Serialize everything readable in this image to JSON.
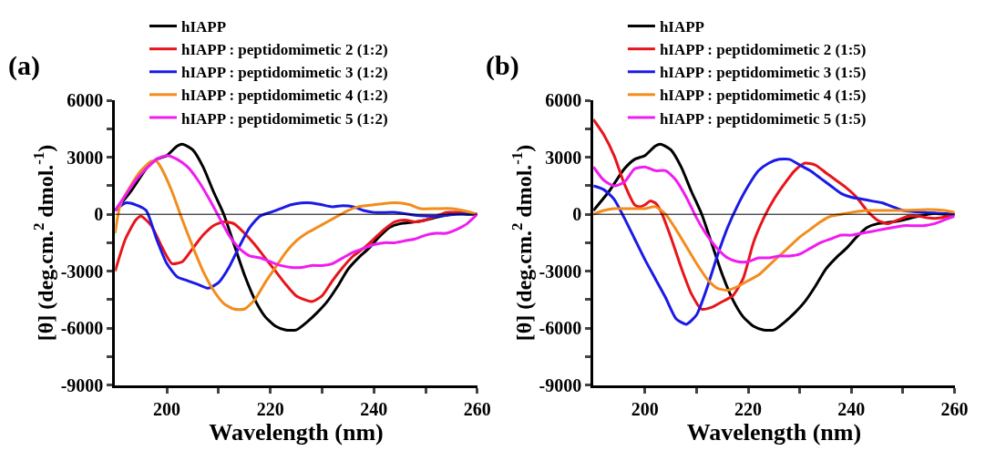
{
  "chart_data": [
    {
      "type": "line",
      "title": "(a)",
      "xlabel": "Wavelength (nm)",
      "ylabel": "[θ] (deg.cm.$^{2}$ dmol.$^{-1}$)",
      "legend": "top left",
      "xlim": [
        190,
        260
      ],
      "xticks": [
        200,
        {
          "value": 210,
          "label": null
        },
        220,
        {
          "value": 230,
          "label": null
        },
        240,
        {
          "value": 250,
          "label": null
        },
        260
      ],
      "ylim": [
        -9000,
        6000
      ],
      "yticks": [
        -9000,
        {
          "value": -7500,
          "label": null
        },
        -6000,
        {
          "value": -4500,
          "label": null
        },
        -3000,
        {
          "value": -1500,
          "label": null
        },
        0,
        {
          "value": 1500,
          "label": null
        },
        3000,
        {
          "value": 4500,
          "label": null
        },
        6000
      ],
      "ref_lines": [
        {
          "axis": "y",
          "value": 0,
          "color": "#000000"
        }
      ],
      "series": [
        {
          "name": "hIAPP",
          "color": "#000000",
          "x": [
            190,
            193,
            196,
            198,
            200,
            202,
            203,
            205,
            207,
            209,
            211,
            213,
            215,
            217,
            219,
            221,
            223,
            225,
            227,
            229,
            231,
            233,
            235,
            237,
            239,
            241,
            243,
            245,
            248,
            250,
            253,
            256,
            258,
            260
          ],
          "values": [
            200,
            1200,
            2400,
            2900,
            3100,
            3600,
            3700,
            3400,
            2500,
            1200,
            0,
            -1600,
            -3200,
            -4500,
            -5400,
            -5900,
            -6100,
            -6100,
            -5700,
            -5200,
            -4600,
            -3800,
            -2900,
            -2300,
            -1800,
            -1200,
            -700,
            -500,
            -400,
            -300,
            -100,
            50,
            0,
            0
          ]
        },
        {
          "name": "hIAPP : peptidomimetic 2 (1:2)",
          "color": "#e8141b",
          "x": [
            190,
            192,
            194,
            195,
            197,
            199,
            201,
            203,
            205,
            207,
            209,
            211,
            213,
            215,
            217,
            219,
            221,
            223,
            225,
            228,
            230,
            232,
            234,
            236,
            238,
            240,
            242,
            244,
            246,
            248,
            250,
            252,
            254,
            256,
            258,
            260
          ],
          "values": [
            -3000,
            -1300,
            -300,
            -100,
            -600,
            -1700,
            -2600,
            -2500,
            -1800,
            -1100,
            -600,
            -400,
            -500,
            -1000,
            -1600,
            -2300,
            -3000,
            -3700,
            -4300,
            -4600,
            -4300,
            -3500,
            -2800,
            -2200,
            -1800,
            -1300,
            -800,
            -400,
            -300,
            -400,
            -300,
            -100,
            100,
            100,
            50,
            0
          ]
        },
        {
          "name": "hIAPP : peptidomimetic 3 (1:2)",
          "color": "#1a1ae6",
          "x": [
            190,
            192,
            194,
            196,
            198,
            200,
            202,
            204,
            206,
            208,
            210,
            212,
            214,
            216,
            218,
            220,
            222,
            224,
            226,
            228,
            230,
            232,
            234,
            236,
            238,
            240,
            244,
            248,
            252,
            256,
            260
          ],
          "values": [
            200,
            600,
            500,
            200,
            -1300,
            -2600,
            -3300,
            -3500,
            -3700,
            -3900,
            -3600,
            -2800,
            -1700,
            -700,
            -100,
            100,
            300,
            500,
            600,
            600,
            500,
            400,
            450,
            400,
            200,
            100,
            100,
            -50,
            -100,
            0,
            0
          ]
        },
        {
          "name": "hIAPP : peptidomimetic 4 (1:2)",
          "color": "#f28c1c",
          "x": [
            190,
            191,
            193,
            195,
            197,
            198,
            199,
            201,
            203,
            205,
            207,
            209,
            211,
            213,
            215,
            217,
            219,
            221,
            223,
            225,
            227,
            229,
            231,
            233,
            235,
            237,
            240,
            243,
            245,
            247,
            249,
            252,
            255,
            258,
            260
          ],
          "values": [
            -1000,
            500,
            1500,
            2300,
            2800,
            2800,
            2400,
            1200,
            -300,
            -1700,
            -3000,
            -4000,
            -4700,
            -5000,
            -5000,
            -4500,
            -3600,
            -2800,
            -2000,
            -1400,
            -1000,
            -700,
            -400,
            -100,
            200,
            400,
            500,
            600,
            600,
            500,
            300,
            300,
            300,
            150,
            0
          ]
        },
        {
          "name": "hIAPP : peptidomimetic 5 (1:2)",
          "color": "#f01cf0",
          "x": [
            190,
            192,
            194,
            196,
            198,
            200,
            202,
            204,
            206,
            208,
            210,
            212,
            214,
            216,
            218,
            220,
            222,
            224,
            226,
            228,
            230,
            232,
            234,
            236,
            238,
            240,
            242,
            244,
            246,
            248,
            250,
            252,
            254,
            256,
            258,
            260
          ],
          "values": [
            200,
            1000,
            1800,
            2400,
            2900,
            3100,
            2900,
            2500,
            1800,
            900,
            -100,
            -1100,
            -1800,
            -2200,
            -2300,
            -2500,
            -2700,
            -2800,
            -2800,
            -2700,
            -2700,
            -2600,
            -2300,
            -2000,
            -1800,
            -1600,
            -1500,
            -1500,
            -1400,
            -1300,
            -1100,
            -1000,
            -1000,
            -800,
            -500,
            0
          ]
        }
      ]
    },
    {
      "type": "line",
      "title": "(b)",
      "xlabel": "Wavelength (nm)",
      "ylabel": "[θ] (deg.cm.$^{2}$ dmol.$^{-1}$)",
      "legend": "top left",
      "xlim": [
        190,
        260
      ],
      "xticks": [
        200,
        {
          "value": 210,
          "label": null
        },
        220,
        {
          "value": 230,
          "label": null
        },
        240,
        {
          "value": 250,
          "label": null
        },
        260
      ],
      "ylim": [
        -9000,
        6000
      ],
      "yticks": [
        -9000,
        {
          "value": -7500,
          "label": null
        },
        -6000,
        {
          "value": -4500,
          "label": null
        },
        -3000,
        {
          "value": -1500,
          "label": null
        },
        0,
        {
          "value": 1500,
          "label": null
        },
        3000,
        {
          "value": 4500,
          "label": null
        },
        6000
      ],
      "ref_lines": [
        {
          "axis": "y",
          "value": 0,
          "color": "#000000"
        }
      ],
      "series": [
        {
          "name": "hIAPP",
          "color": "#000000",
          "x": [
            190,
            193,
            196,
            198,
            200,
            202,
            203,
            205,
            207,
            209,
            211,
            213,
            215,
            217,
            219,
            221,
            223,
            225,
            227,
            229,
            231,
            233,
            235,
            237,
            239,
            241,
            243,
            245,
            248,
            250,
            253,
            256,
            258,
            260
          ],
          "values": [
            200,
            1200,
            2400,
            2900,
            3100,
            3600,
            3700,
            3400,
            2500,
            1200,
            0,
            -1600,
            -3200,
            -4500,
            -5400,
            -5900,
            -6100,
            -6100,
            -5700,
            -5200,
            -4600,
            -3800,
            -2900,
            -2300,
            -1800,
            -1200,
            -700,
            -500,
            -400,
            -300,
            -100,
            50,
            0,
            0
          ]
        },
        {
          "name": "hIAPP : peptidomimetic 2 (1:5)",
          "color": "#e8141b",
          "x": [
            190,
            192,
            194,
            196,
            198,
            199,
            200,
            201,
            202,
            203,
            205,
            207,
            209,
            211,
            213,
            215,
            217,
            219,
            221,
            223,
            225,
            227,
            229,
            231,
            233,
            235,
            237,
            239,
            241,
            243,
            245,
            247,
            249,
            251,
            253,
            255,
            257,
            260
          ],
          "values": [
            5000,
            4200,
            3100,
            1600,
            500,
            400,
            500,
            700,
            600,
            200,
            -1200,
            -2800,
            -4200,
            -5000,
            -4900,
            -4600,
            -4300,
            -3400,
            -1500,
            -200,
            800,
            1600,
            2300,
            2700,
            2600,
            2200,
            1800,
            1400,
            900,
            200,
            -300,
            -500,
            -300,
            -100,
            -100,
            -200,
            -200,
            0
          ]
        },
        {
          "name": "hIAPP : peptidomimetic 3 (1:5)",
          "color": "#1a1ae6",
          "x": [
            190,
            192,
            194,
            196,
            198,
            200,
            202,
            204,
            206,
            208,
            210,
            212,
            214,
            216,
            218,
            220,
            222,
            224,
            226,
            228,
            230,
            232,
            234,
            236,
            238,
            240,
            242,
            244,
            246,
            248,
            250,
            254,
            260
          ],
          "values": [
            1500,
            1300,
            800,
            -200,
            -1300,
            -2400,
            -3400,
            -4400,
            -5500,
            -5800,
            -5300,
            -3900,
            -2200,
            -700,
            500,
            1500,
            2300,
            2700,
            2900,
            2900,
            2600,
            2300,
            1900,
            1500,
            1100,
            900,
            800,
            700,
            600,
            400,
            200,
            100,
            0
          ]
        },
        {
          "name": "hIAPP : peptidomimetic 4 (1:5)",
          "color": "#f28c1c",
          "x": [
            190,
            192,
            194,
            196,
            198,
            200,
            202,
            204,
            206,
            208,
            210,
            212,
            214,
            216,
            218,
            220,
            222,
            224,
            226,
            228,
            230,
            232,
            234,
            236,
            238,
            240,
            243,
            246,
            250,
            255,
            258,
            260
          ],
          "values": [
            0,
            200,
            300,
            300,
            300,
            300,
            400,
            0,
            -800,
            -1700,
            -2600,
            -3400,
            -3900,
            -4000,
            -3800,
            -3500,
            -3200,
            -2700,
            -2200,
            -1700,
            -1200,
            -800,
            -400,
            -100,
            0,
            100,
            200,
            200,
            200,
            250,
            200,
            100
          ]
        },
        {
          "name": "hIAPP : peptidomimetic 5 (1:5)",
          "color": "#f01cf0",
          "x": [
            190,
            192,
            194,
            196,
            198,
            200,
            202,
            204,
            206,
            208,
            210,
            212,
            214,
            216,
            218,
            220,
            222,
            224,
            226,
            228,
            230,
            232,
            234,
            236,
            238,
            240,
            242,
            244,
            246,
            248,
            250,
            252,
            254,
            256,
            258,
            260
          ],
          "values": [
            2500,
            1800,
            1500,
            1700,
            2400,
            2500,
            2300,
            2300,
            1800,
            900,
            -200,
            -1100,
            -1800,
            -2300,
            -2500,
            -2500,
            -2300,
            -2300,
            -2200,
            -2200,
            -2100,
            -1800,
            -1500,
            -1300,
            -1100,
            -1100,
            -1000,
            -900,
            -800,
            -700,
            -600,
            -600,
            -600,
            -500,
            -300,
            -100
          ]
        }
      ]
    }
  ]
}
